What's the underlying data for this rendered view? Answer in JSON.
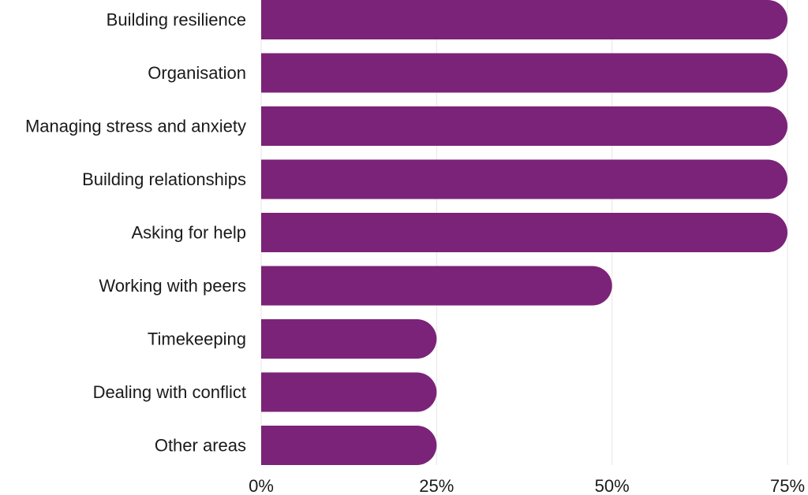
{
  "chart_data": {
    "type": "bar",
    "orientation": "horizontal",
    "title": "",
    "xlabel": "",
    "ylabel": "",
    "categories": [
      "Building resilience",
      "Organisation",
      "Managing stress and anxiety",
      "Building relationships",
      "Asking for help",
      "Working with peers",
      "Timekeeping",
      "Dealing with conflict",
      "Other areas"
    ],
    "values": [
      75,
      75,
      75,
      75,
      75,
      50,
      25,
      25,
      25
    ],
    "xlim": [
      0,
      75
    ],
    "x_ticks": [
      0,
      25,
      50,
      75
    ],
    "x_tick_labels": [
      "0%",
      "25%",
      "50%",
      "75%"
    ],
    "grid": "vertical",
    "bar_color": "#7b2378"
  }
}
